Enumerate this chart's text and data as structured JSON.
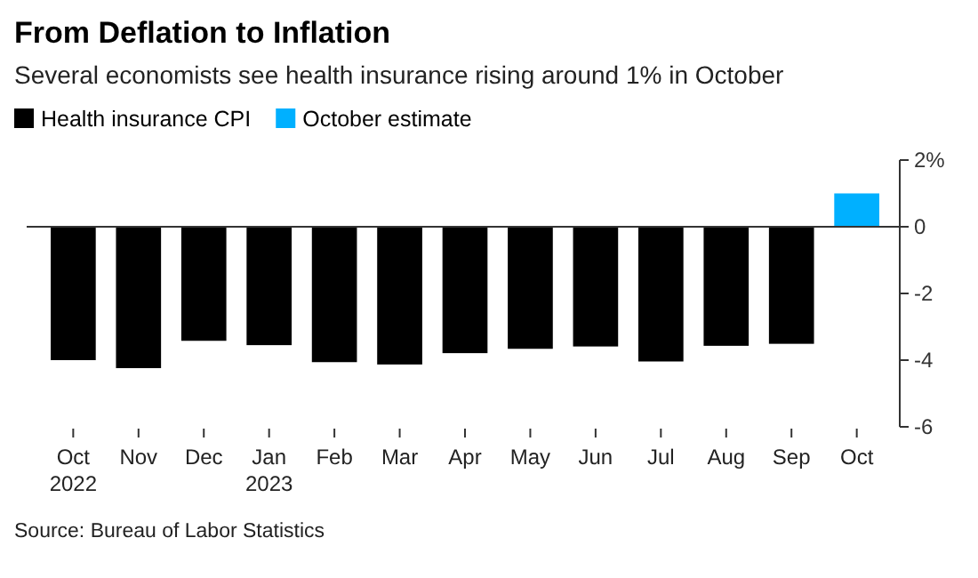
{
  "chart_data": {
    "type": "bar",
    "title": "From Deflation to Inflation",
    "subtitle": "Several economists see health insurance rising around 1% in October",
    "categories": [
      "Oct\n2022",
      "Nov",
      "Dec",
      "Jan\n2023",
      "Feb",
      "Mar",
      "Apr",
      "May",
      "Jun",
      "Jul",
      "Aug",
      "Sep",
      "Oct"
    ],
    "series": [
      {
        "name": "Health insurance CPI",
        "color": "#000000",
        "values": [
          -4.0,
          -4.24,
          -3.42,
          -3.55,
          -4.06,
          -4.13,
          -3.79,
          -3.66,
          -3.59,
          -4.04,
          -3.57,
          -3.51,
          null
        ]
      },
      {
        "name": "October estimate",
        "color": "#00b0ff",
        "values": [
          null,
          null,
          null,
          null,
          null,
          null,
          null,
          null,
          null,
          null,
          null,
          null,
          1.0
        ]
      }
    ],
    "ylim": [
      -6,
      2
    ],
    "yticks": [
      {
        "value": 2,
        "label": "2%"
      },
      0,
      -2,
      -4,
      -6
    ],
    "grid": false,
    "ref_lines": [
      {
        "axis": "y",
        "value": 0,
        "color": "#333333"
      }
    ],
    "legend": "top left",
    "annotations": [
      "Source: Bureau of Labor Statistics"
    ]
  }
}
